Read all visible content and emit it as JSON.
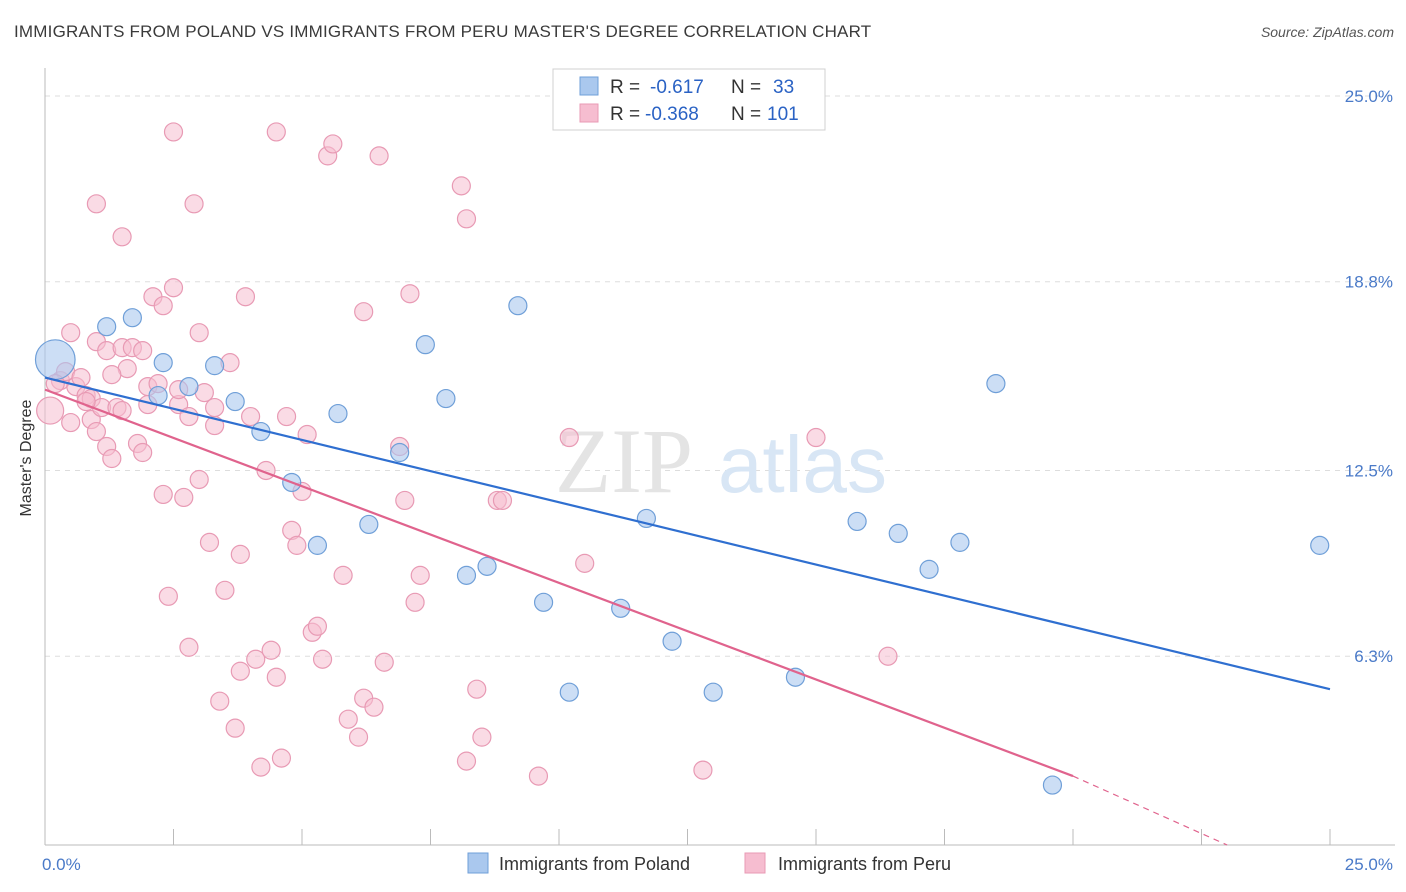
{
  "title": "IMMIGRANTS FROM POLAND VS IMMIGRANTS FROM PERU MASTER'S DEGREE CORRELATION CHART",
  "source": "Source: ZipAtlas.com",
  "watermark": {
    "zip": "ZIP",
    "atlas": "atlas"
  },
  "colors": {
    "poland_fill": "#aac8ee",
    "poland_stroke": "#6f9fd8",
    "poland_line": "#2f6fd0",
    "peru_fill": "#f6bdd0",
    "peru_stroke": "#e89ab4",
    "peru_line": "#e0638d",
    "tick_text": "#4a7ac8",
    "grid": "#dddddd"
  },
  "legend": {
    "rows": [
      {
        "r_label": "R =",
        "r_value": "-0.617",
        "n_label": "N =",
        "n_value": "33"
      },
      {
        "r_label": "R =",
        "r_value": "-0.368",
        "n_label": "N =",
        "n_value": "101"
      }
    ]
  },
  "bottom_legend": [
    "Immigrants from Poland",
    "Immigrants from Peru"
  ],
  "chart_data": {
    "type": "scatter",
    "title": "IMMIGRANTS FROM POLAND VS IMMIGRANTS FROM PERU MASTER'S DEGREE CORRELATION CHART",
    "xlabel": "",
    "ylabel": "Master's Degree",
    "xlim": [
      0,
      25
    ],
    "ylim": [
      0,
      25.6
    ],
    "x_tick_labels": [
      {
        "value": 0,
        "label": "0.0%"
      },
      {
        "value": 25,
        "label": "25.0%"
      }
    ],
    "y_tick_labels": [
      {
        "value": 6.3,
        "label": "6.3%"
      },
      {
        "value": 12.5,
        "label": "12.5%"
      },
      {
        "value": 18.8,
        "label": "18.8%"
      },
      {
        "value": 25.0,
        "label": "25.0%"
      }
    ],
    "grid": true,
    "series": [
      {
        "name": "Immigrants from Poland",
        "points": [
          [
            0.2,
            16.2,
            2.2
          ],
          [
            1.2,
            17.3,
            1
          ],
          [
            1.7,
            17.6,
            1
          ],
          [
            2.2,
            15.0,
            1
          ],
          [
            2.3,
            16.1,
            1
          ],
          [
            2.8,
            15.3,
            1
          ],
          [
            3.3,
            16.0,
            1
          ],
          [
            3.7,
            14.8,
            1
          ],
          [
            4.2,
            13.8,
            1
          ],
          [
            4.8,
            12.1,
            1
          ],
          [
            5.3,
            10.0,
            1
          ],
          [
            5.7,
            14.4,
            1
          ],
          [
            6.3,
            10.7,
            1
          ],
          [
            6.9,
            13.1,
            1
          ],
          [
            7.4,
            16.7,
            1
          ],
          [
            7.8,
            14.9,
            1
          ],
          [
            8.2,
            9.0,
            1
          ],
          [
            8.6,
            9.3,
            1
          ],
          [
            9.2,
            18.0,
            1
          ],
          [
            9.7,
            8.1,
            1
          ],
          [
            10.2,
            5.1,
            1
          ],
          [
            11.2,
            7.9,
            1
          ],
          [
            11.7,
            10.9,
            1
          ],
          [
            12.2,
            6.8,
            1
          ],
          [
            13.0,
            5.1,
            1
          ],
          [
            14.6,
            5.6,
            1
          ],
          [
            15.8,
            10.8,
            1
          ],
          [
            16.6,
            10.4,
            1
          ],
          [
            17.2,
            9.2,
            1
          ],
          [
            17.8,
            10.1,
            1
          ],
          [
            18.5,
            15.4,
            1
          ],
          [
            19.6,
            2.0,
            1
          ],
          [
            24.8,
            10.0,
            1
          ]
        ],
        "trend": {
          "x": [
            0,
            25
          ],
          "y": [
            15.6,
            5.2
          ]
        }
      },
      {
        "name": "Immigrants from Peru",
        "points": [
          [
            0.1,
            14.5,
            1.5
          ],
          [
            0.3,
            15.5,
            1
          ],
          [
            0.4,
            15.8,
            1
          ],
          [
            0.5,
            17.1,
            1
          ],
          [
            0.5,
            14.1,
            1
          ],
          [
            0.6,
            15.3,
            1
          ],
          [
            0.7,
            15.6,
            1
          ],
          [
            0.8,
            15.0,
            1
          ],
          [
            0.9,
            14.9,
            1
          ],
          [
            1.0,
            16.8,
            1
          ],
          [
            0.9,
            14.2,
            1
          ],
          [
            1.0,
            13.8,
            1
          ],
          [
            1.0,
            21.4,
            1
          ],
          [
            1.1,
            14.6,
            1
          ],
          [
            1.2,
            16.5,
            1
          ],
          [
            1.2,
            13.3,
            1
          ],
          [
            1.3,
            12.9,
            1
          ],
          [
            1.4,
            14.6,
            1
          ],
          [
            1.5,
            14.5,
            1
          ],
          [
            1.5,
            16.6,
            1
          ],
          [
            1.5,
            20.3,
            1
          ],
          [
            1.6,
            15.9,
            1
          ],
          [
            1.7,
            16.6,
            1
          ],
          [
            1.8,
            13.4,
            1
          ],
          [
            1.9,
            16.5,
            1
          ],
          [
            1.9,
            13.1,
            1
          ],
          [
            2.0,
            15.3,
            1
          ],
          [
            2.0,
            14.7,
            1
          ],
          [
            2.1,
            18.3,
            1
          ],
          [
            2.2,
            15.4,
            1
          ],
          [
            2.3,
            11.7,
            1
          ],
          [
            2.3,
            18.0,
            1
          ],
          [
            2.4,
            8.3,
            1
          ],
          [
            2.5,
            23.8,
            1
          ],
          [
            2.5,
            18.6,
            1
          ],
          [
            2.6,
            14.7,
            1
          ],
          [
            2.7,
            11.6,
            1
          ],
          [
            2.8,
            14.3,
            1
          ],
          [
            2.8,
            6.6,
            1
          ],
          [
            2.9,
            21.4,
            1
          ],
          [
            3.0,
            17.1,
            1
          ],
          [
            3.1,
            15.1,
            1
          ],
          [
            3.2,
            10.1,
            1
          ],
          [
            3.3,
            14.0,
            1
          ],
          [
            3.3,
            14.6,
            1
          ],
          [
            3.4,
            4.8,
            1
          ],
          [
            3.5,
            8.5,
            1
          ],
          [
            3.6,
            16.1,
            1
          ],
          [
            3.7,
            3.9,
            1
          ],
          [
            3.8,
            9.7,
            1
          ],
          [
            3.8,
            5.8,
            1
          ],
          [
            3.9,
            18.3,
            1
          ],
          [
            4.0,
            14.3,
            1
          ],
          [
            4.1,
            6.2,
            1
          ],
          [
            4.2,
            2.6,
            1
          ],
          [
            4.3,
            12.5,
            1
          ],
          [
            4.4,
            6.5,
            1
          ],
          [
            4.5,
            5.6,
            1
          ],
          [
            4.5,
            23.8,
            1
          ],
          [
            4.6,
            2.9,
            1
          ],
          [
            4.7,
            14.3,
            1
          ],
          [
            4.8,
            10.5,
            1
          ],
          [
            4.9,
            10.0,
            1
          ],
          [
            5.0,
            11.8,
            1
          ],
          [
            5.1,
            13.7,
            1
          ],
          [
            5.2,
            7.1,
            1
          ],
          [
            5.3,
            7.3,
            1
          ],
          [
            5.4,
            6.2,
            1
          ],
          [
            5.5,
            23.0,
            1
          ],
          [
            5.6,
            23.4,
            1
          ],
          [
            5.8,
            9.0,
            1
          ],
          [
            5.9,
            4.2,
            1
          ],
          [
            6.1,
            3.6,
            1
          ],
          [
            6.2,
            4.9,
            1
          ],
          [
            6.2,
            17.8,
            1
          ],
          [
            6.4,
            4.6,
            1
          ],
          [
            6.5,
            23.0,
            1
          ],
          [
            6.6,
            6.1,
            1
          ],
          [
            6.9,
            13.3,
            1
          ],
          [
            7.0,
            11.5,
            1
          ],
          [
            7.1,
            18.4,
            1
          ],
          [
            7.2,
            8.1,
            1
          ],
          [
            7.3,
            9.0,
            1
          ],
          [
            8.1,
            22.0,
            1
          ],
          [
            8.2,
            20.9,
            1
          ],
          [
            8.2,
            2.8,
            1
          ],
          [
            8.4,
            5.2,
            1
          ],
          [
            8.5,
            3.6,
            1
          ],
          [
            8.8,
            11.5,
            1
          ],
          [
            8.9,
            11.5,
            1
          ],
          [
            9.6,
            2.3,
            1
          ],
          [
            10.2,
            13.6,
            1
          ],
          [
            10.5,
            9.4,
            1
          ],
          [
            12.8,
            2.5,
            1
          ],
          [
            15.0,
            13.6,
            1
          ],
          [
            16.4,
            6.3,
            1
          ],
          [
            0.2,
            15.4,
            1
          ],
          [
            0.8,
            14.8,
            1
          ],
          [
            1.3,
            15.7,
            1
          ],
          [
            2.6,
            15.2,
            1
          ],
          [
            3.0,
            12.2,
            1
          ]
        ],
        "trend": {
          "x": [
            0,
            20.0
          ],
          "y": [
            15.2,
            2.3
          ]
        },
        "trend_dashed": {
          "x": [
            20.0,
            23.0
          ],
          "y": [
            2.3,
            -0.3
          ]
        }
      }
    ]
  }
}
